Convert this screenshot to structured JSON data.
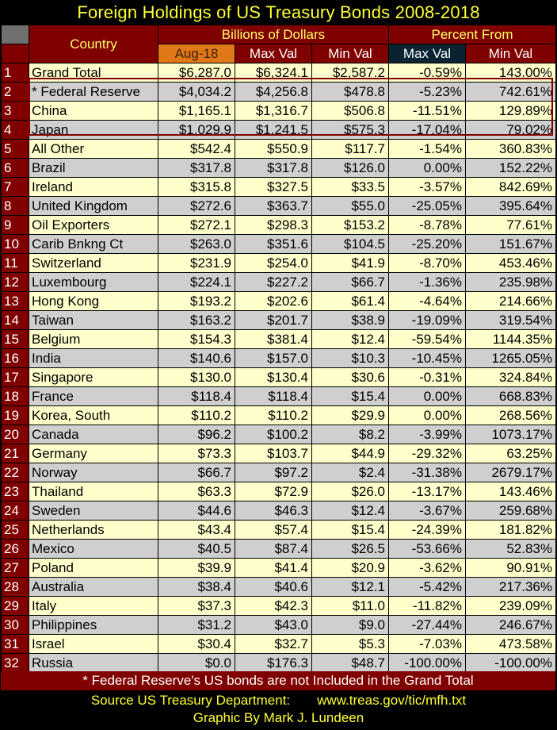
{
  "title": "Foreign Holdings of US Treasury Bonds 2008-2018",
  "chart_data": {
    "type": "table",
    "title": "Foreign Holdings of US Treasury Bonds 2008-2018",
    "header": {
      "country": "Country",
      "group_billions": "Billions of Dollars",
      "group_percent": "Percent From",
      "columns": [
        "Aug-18",
        "Max Val",
        "Min Val",
        "Max Val",
        "Min Val"
      ]
    },
    "rows": [
      {
        "n": "1",
        "country": "Grand Total",
        "aug18": "$6,287.0",
        "max": "$6,324.1",
        "min": "$2,587.2",
        "pct_max": "-0.59%",
        "pct_min": "143.00%"
      },
      {
        "n": "2",
        "country": "* Federal Reserve",
        "aug18": "$4,034.2",
        "max": "$4,256.8",
        "min": "$478.8",
        "pct_max": "-5.23%",
        "pct_min": "742.61%"
      },
      {
        "n": "3",
        "country": "China",
        "aug18": "$1,165.1",
        "max": "$1,316.7",
        "min": "$506.8",
        "pct_max": "-11.51%",
        "pct_min": "129.89%"
      },
      {
        "n": "4",
        "country": "Japan",
        "aug18": "$1,029.9",
        "max": "$1,241.5",
        "min": "$575.3",
        "pct_max": "-17.04%",
        "pct_min": "79.02%"
      },
      {
        "n": "5",
        "country": "All Other",
        "aug18": "$542.4",
        "max": "$550.9",
        "min": "$117.7",
        "pct_max": "-1.54%",
        "pct_min": "360.83%"
      },
      {
        "n": "6",
        "country": "Brazil",
        "aug18": "$317.8",
        "max": "$317.8",
        "min": "$126.0",
        "pct_max": "0.00%",
        "pct_min": "152.22%"
      },
      {
        "n": "7",
        "country": "Ireland",
        "aug18": "$315.8",
        "max": "$327.5",
        "min": "$33.5",
        "pct_max": "-3.57%",
        "pct_min": "842.69%"
      },
      {
        "n": "8",
        "country": "United Kingdom",
        "aug18": "$272.6",
        "max": "$363.7",
        "min": "$55.0",
        "pct_max": "-25.05%",
        "pct_min": "395.64%"
      },
      {
        "n": "9",
        "country": "Oil Exporters",
        "aug18": "$272.1",
        "max": "$298.3",
        "min": "$153.2",
        "pct_max": "-8.78%",
        "pct_min": "77.61%"
      },
      {
        "n": "10",
        "country": "Carib Bnkng Ct",
        "aug18": "$263.0",
        "max": "$351.6",
        "min": "$104.5",
        "pct_max": "-25.20%",
        "pct_min": "151.67%"
      },
      {
        "n": "11",
        "country": "Switzerland",
        "aug18": "$231.9",
        "max": "$254.0",
        "min": "$41.9",
        "pct_max": "-8.70%",
        "pct_min": "453.46%"
      },
      {
        "n": "12",
        "country": "Luxembourg",
        "aug18": "$224.1",
        "max": "$227.2",
        "min": "$66.7",
        "pct_max": "-1.36%",
        "pct_min": "235.98%"
      },
      {
        "n": "13",
        "country": "Hong Kong",
        "aug18": "$193.2",
        "max": "$202.6",
        "min": "$61.4",
        "pct_max": "-4.64%",
        "pct_min": "214.66%"
      },
      {
        "n": "14",
        "country": "Taiwan",
        "aug18": "$163.2",
        "max": "$201.7",
        "min": "$38.9",
        "pct_max": "-19.09%",
        "pct_min": "319.54%"
      },
      {
        "n": "15",
        "country": "Belgium",
        "aug18": "$154.3",
        "max": "$381.4",
        "min": "$12.4",
        "pct_max": "-59.54%",
        "pct_min": "1144.35%"
      },
      {
        "n": "16",
        "country": "India",
        "aug18": "$140.6",
        "max": "$157.0",
        "min": "$10.3",
        "pct_max": "-10.45%",
        "pct_min": "1265.05%"
      },
      {
        "n": "17",
        "country": "Singapore",
        "aug18": "$130.0",
        "max": "$130.4",
        "min": "$30.6",
        "pct_max": "-0.31%",
        "pct_min": "324.84%"
      },
      {
        "n": "18",
        "country": "France",
        "aug18": "$118.4",
        "max": "$118.4",
        "min": "$15.4",
        "pct_max": "0.00%",
        "pct_min": "668.83%"
      },
      {
        "n": "19",
        "country": "Korea, South",
        "aug18": "$110.2",
        "max": "$110.2",
        "min": "$29.9",
        "pct_max": "0.00%",
        "pct_min": "268.56%"
      },
      {
        "n": "20",
        "country": "Canada",
        "aug18": "$96.2",
        "max": "$100.2",
        "min": "$8.2",
        "pct_max": "-3.99%",
        "pct_min": "1073.17%"
      },
      {
        "n": "21",
        "country": "Germany",
        "aug18": "$73.3",
        "max": "$103.7",
        "min": "$44.9",
        "pct_max": "-29.32%",
        "pct_min": "63.25%"
      },
      {
        "n": "22",
        "country": "Norway",
        "aug18": "$66.7",
        "max": "$97.2",
        "min": "$2.4",
        "pct_max": "-31.38%",
        "pct_min": "2679.17%"
      },
      {
        "n": "23",
        "country": "Thailand",
        "aug18": "$63.3",
        "max": "$72.9",
        "min": "$26.0",
        "pct_max": "-13.17%",
        "pct_min": "143.46%"
      },
      {
        "n": "24",
        "country": "Sweden",
        "aug18": "$44.6",
        "max": "$46.3",
        "min": "$12.4",
        "pct_max": "-3.67%",
        "pct_min": "259.68%"
      },
      {
        "n": "25",
        "country": "Netherlands",
        "aug18": "$43.4",
        "max": "$57.4",
        "min": "$15.4",
        "pct_max": "-24.39%",
        "pct_min": "181.82%"
      },
      {
        "n": "26",
        "country": "Mexico",
        "aug18": "$40.5",
        "max": "$87.4",
        "min": "$26.5",
        "pct_max": "-53.66%",
        "pct_min": "52.83%"
      },
      {
        "n": "27",
        "country": "Poland",
        "aug18": "$39.9",
        "max": "$41.4",
        "min": "$20.9",
        "pct_max": "-3.62%",
        "pct_min": "90.91%"
      },
      {
        "n": "28",
        "country": "Australia",
        "aug18": "$38.4",
        "max": "$40.6",
        "min": "$12.1",
        "pct_max": "-5.42%",
        "pct_min": "217.36%"
      },
      {
        "n": "29",
        "country": "Italy",
        "aug18": "$37.3",
        "max": "$42.3",
        "min": "$11.0",
        "pct_max": "-11.82%",
        "pct_min": "239.09%"
      },
      {
        "n": "30",
        "country": "Philippines",
        "aug18": "$31.2",
        "max": "$43.0",
        "min": "$9.0",
        "pct_max": "-27.44%",
        "pct_min": "246.67%"
      },
      {
        "n": "31",
        "country": "Israel",
        "aug18": "$30.4",
        "max": "$32.7",
        "min": "$5.3",
        "pct_max": "-7.03%",
        "pct_min": "473.58%"
      },
      {
        "n": "32",
        "country": "Russia",
        "aug18": "$0.0",
        "max": "$176.3",
        "min": "$48.7",
        "pct_max": "-100.00%",
        "pct_min": "-100.00%"
      }
    ],
    "highlighted_rows": [
      2,
      3,
      4
    ]
  },
  "footnote": "* Federal Reserve's US bonds are not Included in the Grand Total",
  "source_label": "Source US Treasury Department:",
  "source_url": "www.treas.gov/tic/mfh.txt",
  "credit": "Graphic By Mark J. Lundeen",
  "colors": {
    "title_text": "#ffff33",
    "header_bg": "#800000",
    "row_light": "#ffffcc",
    "row_gray": "#cfcfcf",
    "aug_header": "#e07818",
    "percent_header": "#0a2333"
  }
}
